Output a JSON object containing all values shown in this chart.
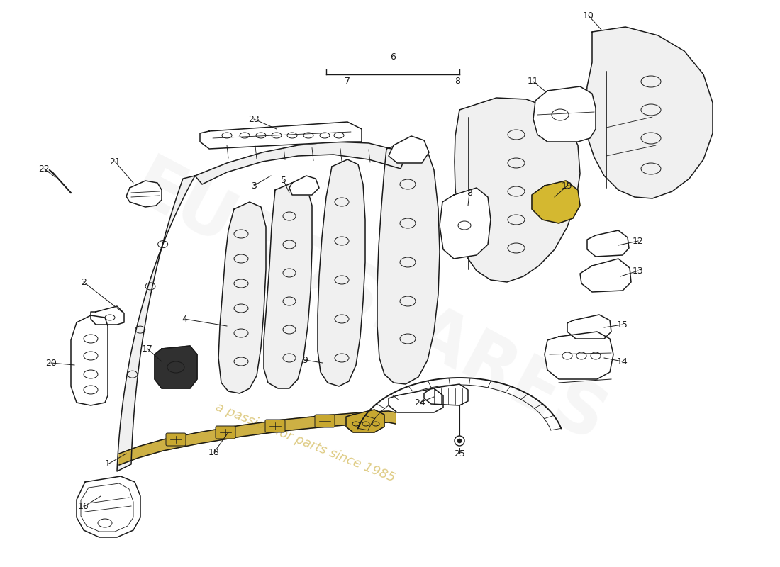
{
  "background_color": "#ffffff",
  "line_color": "#1a1a1a",
  "label_color": "#1a1a1a",
  "watermark_text": "a passion for parts since 1985",
  "label_fontsize": 9,
  "lw": 1.1
}
